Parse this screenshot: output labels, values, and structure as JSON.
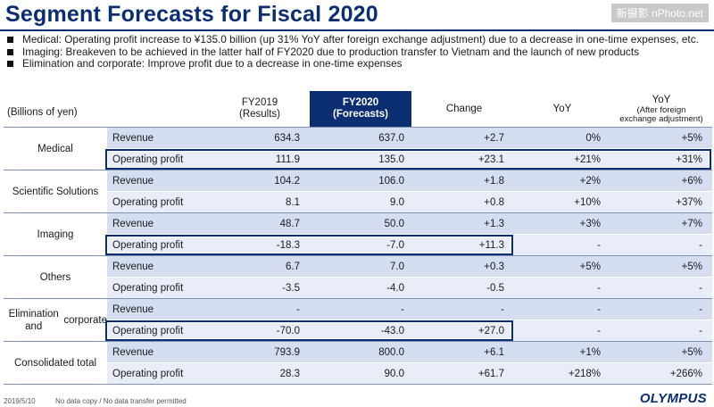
{
  "title": "Segment Forecasts for Fiscal 2020",
  "watermark": "新摄影 nPhoto.net",
  "bullets": [
    "Medical: Operating profit increase to ¥135.0 billion (up 31% YoY after foreign exchange adjustment) due to a decrease in one-time expenses, etc.",
    "Imaging: Breakeven to be achieved in the latter half of FY2020 due to production transfer to Vietnam and the launch of new products",
    "Elimination and corporate: Improve profit due to a decrease in one-time expenses"
  ],
  "table": {
    "unit": "(Billions of yen)",
    "headers": {
      "fy2019": [
        "FY2019",
        "(Results)"
      ],
      "fy2020": [
        "FY2020",
        "(Forecasts)"
      ],
      "change": "Change",
      "yoy": "YoY",
      "yoy_adj": [
        "YoY",
        "(After foreign",
        "exchange adjustment)"
      ]
    },
    "groups": [
      {
        "label": [
          "Medical"
        ],
        "rows": [
          {
            "metric": "Revenue",
            "fy2019": "634.3",
            "fy2020": "637.0",
            "change": "+2.7",
            "yoy": "0%",
            "yoy_adj": "+5%"
          },
          {
            "metric": "Operating profit",
            "fy2019": "111.9",
            "fy2020": "135.0",
            "change": "+23.1",
            "yoy": "+21%",
            "yoy_adj": "+31%"
          }
        ]
      },
      {
        "label": [
          "Scientific Solutions"
        ],
        "rows": [
          {
            "metric": "Revenue",
            "fy2019": "104.2",
            "fy2020": "106.0",
            "change": "+1.8",
            "yoy": "+2%",
            "yoy_adj": "+6%"
          },
          {
            "metric": "Operating profit",
            "fy2019": "8.1",
            "fy2020": "9.0",
            "change": "+0.8",
            "yoy": "+10%",
            "yoy_adj": "+37%"
          }
        ]
      },
      {
        "label": [
          "Imaging"
        ],
        "rows": [
          {
            "metric": "Revenue",
            "fy2019": "48.7",
            "fy2020": "50.0",
            "change": "+1.3",
            "yoy": "+3%",
            "yoy_adj": "+7%"
          },
          {
            "metric": "Operating profit",
            "fy2019": "-18.3",
            "fy2020": "-7.0",
            "change": "+11.3",
            "yoy": "-",
            "yoy_adj": "-"
          }
        ]
      },
      {
        "label": [
          "Others"
        ],
        "rows": [
          {
            "metric": "Revenue",
            "fy2019": "6.7",
            "fy2020": "7.0",
            "change": "+0.3",
            "yoy": "+5%",
            "yoy_adj": "+5%"
          },
          {
            "metric": "Operating profit",
            "fy2019": "-3.5",
            "fy2020": "-4.0",
            "change": "-0.5",
            "yoy": "-",
            "yoy_adj": "-"
          }
        ]
      },
      {
        "label": [
          "Elimination and",
          "corporate"
        ],
        "rows": [
          {
            "metric": "Revenue",
            "fy2019": "-",
            "fy2020": "-",
            "change": "-",
            "yoy": "-",
            "yoy_adj": "-"
          },
          {
            "metric": "Operating profit",
            "fy2019": "-70.0",
            "fy2020": "-43.0",
            "change": "+27.0",
            "yoy": "-",
            "yoy_adj": "-"
          }
        ]
      },
      {
        "label": [
          "Consolidated total"
        ],
        "rows": [
          {
            "metric": "Revenue",
            "fy2019": "793.9",
            "fy2020": "800.0",
            "change": "+6.1",
            "yoy": "+1%",
            "yoy_adj": "+5%"
          },
          {
            "metric": "Operating profit",
            "fy2019": "28.3",
            "fy2020": "90.0",
            "change": "+61.7",
            "yoy": "+218%",
            "yoy_adj": "+266%"
          }
        ]
      }
    ]
  },
  "footer": {
    "date": "2019/5/10",
    "note": "No data copy / No data transfer permitted",
    "logo": "OLYMPUS"
  }
}
